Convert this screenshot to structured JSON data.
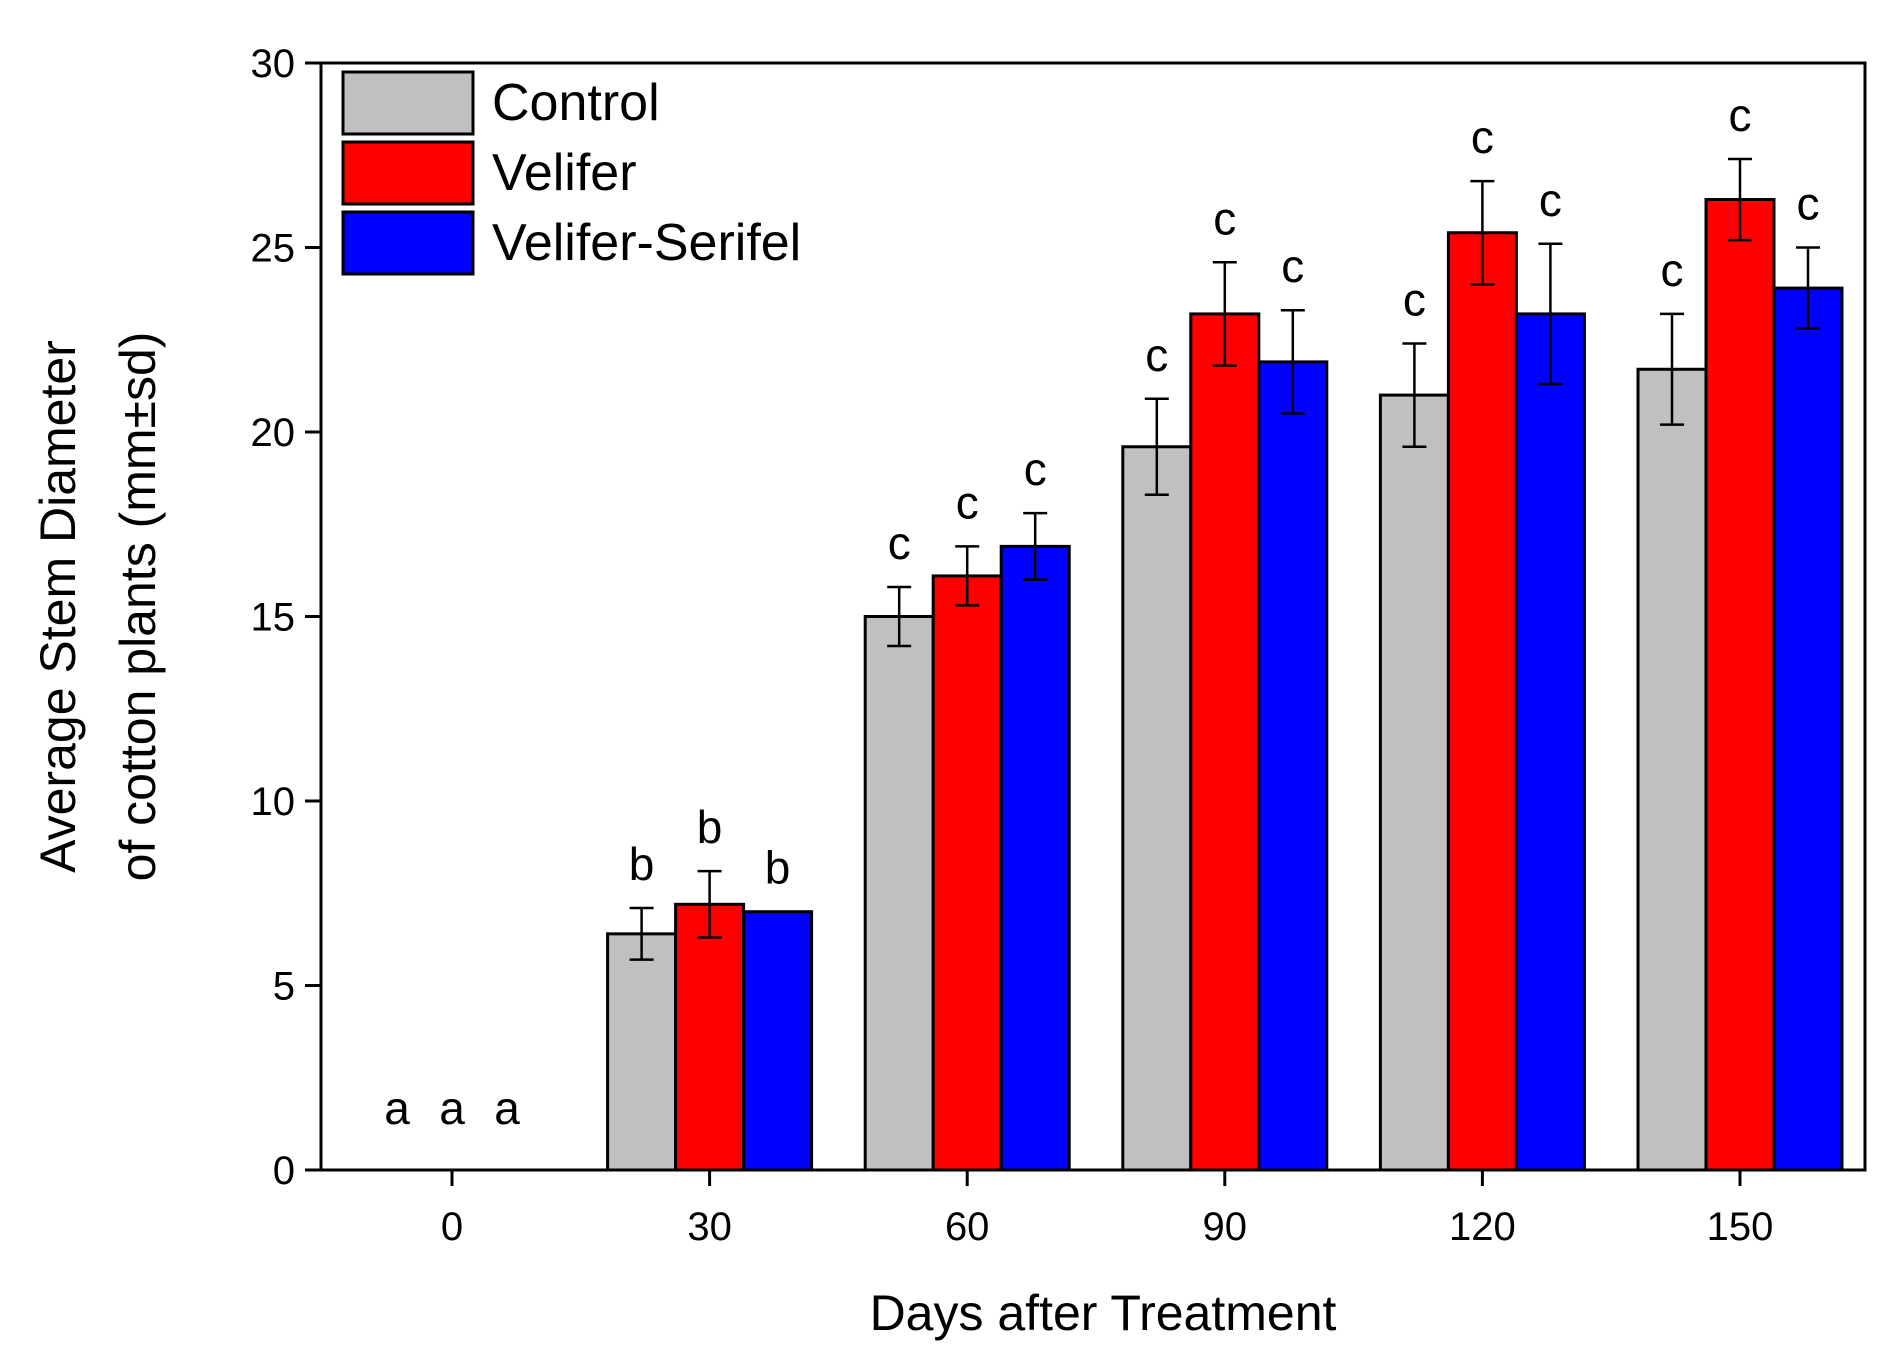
{
  "chart_data": {
    "type": "bar",
    "xlabel": "Days after Treatment",
    "ylabel_line1": "Average Stem Diameter",
    "ylabel_line2": "of cotton plants (mm±sd)",
    "categories": [
      "0",
      "30",
      "60",
      "90",
      "120",
      "150"
    ],
    "ylim": [
      0,
      30
    ],
    "yticks": [
      "0",
      "5",
      "10",
      "15",
      "20",
      "25",
      "30"
    ],
    "legend_position": "top-left",
    "grid": false,
    "series": [
      {
        "name": "Control",
        "color": "#c0c0c0",
        "values": [
          0,
          6.4,
          15.0,
          19.6,
          21.0,
          21.7
        ],
        "errors": [
          0,
          0.7,
          0.8,
          1.3,
          1.4,
          1.5
        ],
        "labels": [
          "a",
          "b",
          "c",
          "c",
          "c",
          "c"
        ]
      },
      {
        "name": "Velifer",
        "color": "#ff0000",
        "values": [
          0,
          7.2,
          16.1,
          23.2,
          25.4,
          26.3
        ],
        "errors": [
          0,
          0.9,
          0.8,
          1.4,
          1.4,
          1.1
        ],
        "labels": [
          "a",
          "b",
          "c",
          "c",
          "c",
          "c"
        ]
      },
      {
        "name": "Velifer-Serifel",
        "color": "#0000ff",
        "values": [
          0,
          7.0,
          16.9,
          21.9,
          23.2,
          23.9
        ],
        "errors": [
          0,
          0,
          0.9,
          1.4,
          1.9,
          1.1
        ],
        "labels": [
          "a",
          "b",
          "c",
          "c",
          "c",
          "c"
        ]
      }
    ]
  }
}
